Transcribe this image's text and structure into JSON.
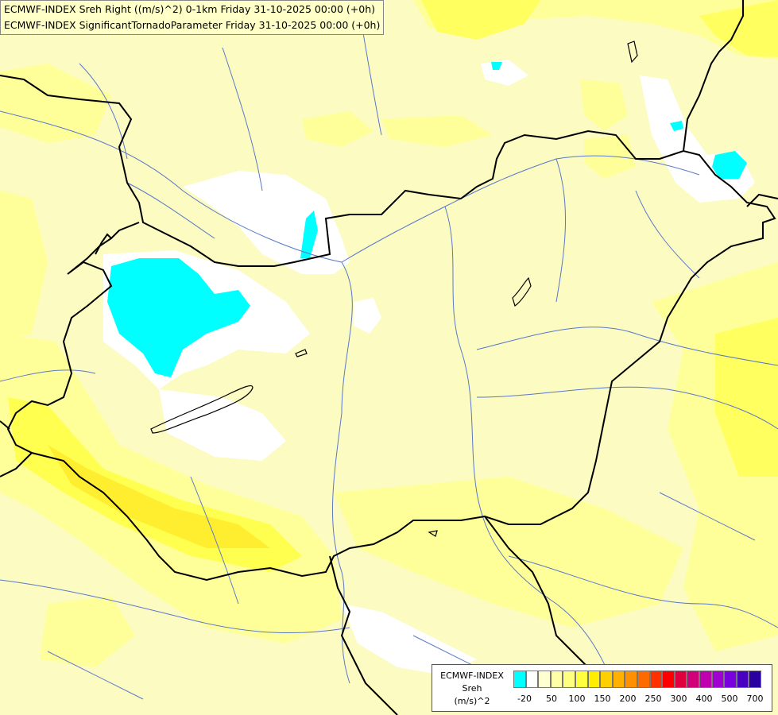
{
  "titles": {
    "line1": "ECMWF-INDEX Sreh Right ((m/s)^2) 0-1km Friday 31-10-2025 00:00 (+0h)",
    "line2": "ECMWF-INDEX SignificantTornadoParameter Friday 31-10-2025 00:00 (+0h)"
  },
  "legend": {
    "source": "ECMWF-INDEX",
    "param": "Sreh",
    "unit": "(m/s)^2",
    "colors": [
      "#00ffff",
      "#ffffff",
      "#ffffd0",
      "#ffffa8",
      "#ffff80",
      "#ffff40",
      "#ffee00",
      "#ffd000",
      "#ffb000",
      "#ff9000",
      "#ff6a00",
      "#ff3000",
      "#ff0000",
      "#e00040",
      "#d0007a",
      "#c000b0",
      "#a000d0",
      "#7a00e0",
      "#4a00c0",
      "#2a00a0"
    ],
    "ticks": [
      "-20",
      "50",
      "100",
      "150",
      "200",
      "250",
      "300",
      "400",
      "500",
      "700"
    ]
  },
  "colors": {
    "background": "#fbfbc2",
    "light_yellow": "#ffff9a",
    "yellow": "#ffff50",
    "cyan": "#00ffff",
    "white": "#ffffff",
    "border": "#000000",
    "river": "#5a78c8"
  }
}
